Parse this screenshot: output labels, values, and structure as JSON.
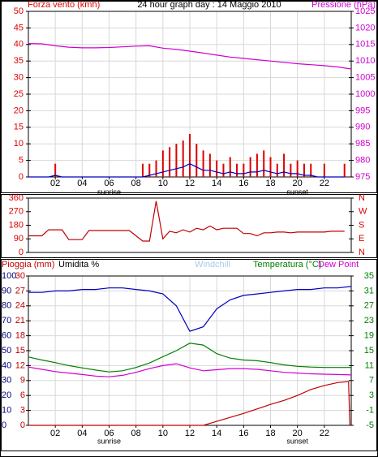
{
  "chart_data": [
    {
      "type": "line",
      "title": "24 hour graph day : 14 Maggio 2010",
      "ylabel": "Forza vento (kmh)",
      "ylabel_color": "#e00000",
      "y2label": "Pressione (hPa)",
      "y2label_color": "#d000d0",
      "xlim": [
        0,
        24
      ],
      "xticks": [
        {
          "value": 2,
          "label": "02"
        },
        {
          "value": 4,
          "label": "04"
        },
        {
          "value": 6,
          "label": "06"
        },
        {
          "value": 8,
          "label": "08"
        },
        {
          "value": 10,
          "label": "10"
        },
        {
          "value": 12,
          "label": "12"
        },
        {
          "value": 14,
          "label": "14"
        },
        {
          "value": 16,
          "label": "16"
        },
        {
          "value": 18,
          "label": "18"
        },
        {
          "value": 20,
          "label": "20"
        },
        {
          "value": 22,
          "label": "22"
        }
      ],
      "ylim": [
        0,
        50
      ],
      "yticks": [
        0,
        5,
        10,
        15,
        20,
        25,
        30,
        35,
        40,
        45,
        50
      ],
      "ytick_color": "#e00000",
      "y2lim": [
        975,
        1025
      ],
      "y2ticks": [
        975,
        980,
        985,
        990,
        995,
        1000,
        1005,
        1010,
        1015,
        1020,
        1025
      ],
      "y2tick_color": "#d000d0",
      "grid": true,
      "annotations": [
        {
          "text": "sunrise",
          "x": 6
        },
        {
          "text": "sunset",
          "x": 20
        }
      ],
      "series": [
        {
          "type": "bar",
          "color": "#e00000",
          "x": [
            0,
            0.5,
            1,
            1.5,
            2,
            2.5,
            3,
            3.5,
            4,
            4.5,
            5,
            5.5,
            6,
            6.5,
            7,
            7.5,
            8,
            8.5,
            9,
            9.5,
            10,
            10.5,
            11,
            11.5,
            12,
            12.5,
            13,
            13.5,
            14,
            14.5,
            15,
            15.5,
            16,
            16.5,
            17,
            17.5,
            18,
            18.5,
            19,
            19.5,
            20,
            20.5,
            21,
            21.5,
            22,
            22.5,
            23,
            23.5
          ],
          "values": [
            0,
            0,
            0,
            0,
            4,
            0,
            0,
            0,
            0,
            0,
            0,
            0,
            0,
            0,
            0,
            0,
            0,
            4,
            4,
            5,
            8,
            9,
            10,
            11,
            13,
            10,
            8,
            7,
            5,
            4,
            6,
            4,
            4,
            6,
            7,
            8,
            6,
            4,
            7,
            4,
            5,
            4,
            4,
            0,
            4,
            0,
            0,
            4
          ]
        },
        {
          "type": "line",
          "color": "#0000c0",
          "x": [
            0,
            0.5,
            1,
            1.5,
            2,
            2.5,
            3,
            3.5,
            4,
            4.5,
            5,
            5.5,
            6,
            6.5,
            7,
            7.5,
            8,
            8.5,
            9,
            9.5,
            10,
            10.5,
            11,
            11.5,
            12,
            12.5,
            13,
            13.5,
            14,
            14.5,
            15,
            15.5,
            16,
            16.5,
            17,
            17.5,
            18,
            18.5,
            19,
            19.5,
            20,
            20.5,
            21,
            21.5,
            22,
            22.5,
            23,
            23.5
          ],
          "values": [
            0,
            0,
            0,
            0,
            0.5,
            0,
            0,
            0,
            0,
            0,
            0,
            0,
            0,
            0,
            0,
            0,
            0,
            0,
            0.5,
            1,
            1.5,
            2,
            2.5,
            3,
            4,
            3,
            2,
            2,
            1.5,
            1,
            1.5,
            1,
            1,
            1.5,
            1.5,
            2,
            1.5,
            1,
            1.5,
            1,
            1,
            0.5,
            0.5,
            0,
            0,
            0,
            0,
            0
          ]
        },
        {
          "type": "line",
          "color": "#d000d0",
          "axis": "y2",
          "x": [
            0,
            1,
            2,
            3,
            4,
            5,
            6,
            7,
            8,
            9,
            10,
            11,
            12,
            13,
            14,
            15,
            16,
            17,
            18,
            19,
            20,
            21,
            22,
            23,
            24
          ],
          "values": [
            1015.3,
            1015.2,
            1014.6,
            1014.2,
            1014.0,
            1014.0,
            1014.1,
            1014.3,
            1014.5,
            1014.6,
            1013.9,
            1013.5,
            1013.0,
            1012.4,
            1011.8,
            1011.2,
            1010.8,
            1010.4,
            1010.0,
            1009.6,
            1009.2,
            1008.9,
            1008.6,
            1008.2,
            1007.6
          ]
        }
      ]
    },
    {
      "type": "line",
      "xlim": [
        0,
        24
      ],
      "ylim": [
        0,
        360
      ],
      "yticks": [
        0,
        90,
        180,
        270,
        360
      ],
      "ytick_color": "#e00000",
      "y2lim": [
        0,
        360
      ],
      "y2ticks": [
        {
          "value": 0,
          "label": "N"
        },
        {
          "value": 90,
          "label": "E"
        },
        {
          "value": 180,
          "label": "S"
        },
        {
          "value": 270,
          "label": "W"
        },
        {
          "value": 360,
          "label": "N"
        }
      ],
      "y2tick_color": "#e00000",
      "grid": false,
      "series": [
        {
          "type": "line",
          "color": "#c00000",
          "x": [
            0,
            0.5,
            1,
            1.5,
            2,
            2.5,
            3,
            3.5,
            4,
            4.5,
            5,
            5.5,
            6,
            6.5,
            7,
            7.5,
            8,
            8.5,
            9,
            9.5,
            10,
            10.5,
            11,
            11.5,
            12,
            12.5,
            13,
            13.5,
            14,
            14.5,
            15,
            15.5,
            16,
            16.5,
            17,
            17.5,
            18,
            18.5,
            19,
            19.5,
            20,
            20.5,
            21,
            21.5,
            22,
            22.5,
            23,
            23.5
          ],
          "values": [
            110,
            110,
            110,
            150,
            150,
            150,
            85,
            85,
            85,
            145,
            145,
            145,
            145,
            145,
            145,
            145,
            110,
            75,
            75,
            340,
            90,
            140,
            130,
            150,
            135,
            160,
            150,
            175,
            150,
            160,
            160,
            160,
            125,
            125,
            110,
            130,
            130,
            135,
            135,
            130,
            135,
            135,
            135,
            135,
            135,
            140,
            140,
            140
          ]
        }
      ]
    },
    {
      "type": "line",
      "xlim": [
        0,
        24
      ],
      "xticks": [
        {
          "value": 2,
          "label": "02"
        },
        {
          "value": 4,
          "label": "04"
        },
        {
          "value": 6,
          "label": "06"
        },
        {
          "value": 8,
          "label": "08"
        },
        {
          "value": 10,
          "label": "10"
        },
        {
          "value": 12,
          "label": "12"
        },
        {
          "value": 14,
          "label": "14"
        },
        {
          "value": 16,
          "label": "16"
        },
        {
          "value": 18,
          "label": "18"
        },
        {
          "value": 20,
          "label": "20"
        },
        {
          "value": 22,
          "label": "22"
        }
      ],
      "ylim": [
        0,
        100
      ],
      "yticks": [
        0,
        10,
        20,
        30,
        40,
        50,
        60,
        70,
        80,
        90,
        100
      ],
      "ytick_color": "#000080",
      "y3lim": [
        0,
        30
      ],
      "y3ticks": [
        0,
        3,
        6,
        9,
        12,
        15,
        18,
        21,
        24,
        27,
        30
      ],
      "y3tick_color": "#c00000",
      "y2lim": [
        -5,
        35
      ],
      "y2ticks": [
        -5,
        -1,
        3,
        7,
        11,
        15,
        19,
        23,
        27,
        31,
        35
      ],
      "y2tick_color": "#008000",
      "grid": true,
      "annotations": [
        {
          "text": "sunrise",
          "x": 6
        },
        {
          "text": "sunset",
          "x": 20
        }
      ],
      "series": [
        {
          "name": "Pioggia (mm)",
          "type": "line",
          "color": "#c00000",
          "axis": "y3",
          "x": [
            0,
            13,
            14,
            15,
            16,
            17,
            18,
            19,
            20,
            21,
            22,
            23,
            23.8,
            23.9
          ],
          "values": [
            0,
            0,
            0.8,
            1.6,
            2.4,
            3.3,
            4.2,
            5.0,
            6.0,
            7.2,
            8.0,
            8.6,
            8.8,
            0
          ]
        },
        {
          "name": "Umidita %",
          "label_color": "#000000",
          "type": "line",
          "color": "#0000c0",
          "x": [
            0,
            1,
            2,
            3,
            4,
            5,
            6,
            7,
            8,
            9,
            10,
            11,
            12,
            13,
            14,
            15,
            16,
            17,
            18,
            19,
            20,
            21,
            22,
            23,
            24
          ],
          "values": [
            89,
            89,
            90,
            90,
            91,
            91,
            92,
            92,
            91,
            90,
            88,
            80,
            63,
            66,
            78,
            84,
            87,
            88,
            89,
            90,
            91,
            91,
            92,
            92,
            93
          ]
        },
        {
          "name": "Windchill",
          "type": "line",
          "color": "#a8cce8",
          "axis": "y2",
          "x": [],
          "values": []
        },
        {
          "name": "Temperatura (°C)",
          "type": "line",
          "color": "#008000",
          "axis": "y2",
          "x": [
            0,
            1,
            2,
            3,
            4,
            5,
            6,
            7,
            8,
            9,
            10,
            11,
            12,
            13,
            14,
            15,
            16,
            17,
            18,
            19,
            20,
            21,
            22,
            23,
            24
          ],
          "values": [
            13.3,
            12.5,
            11.8,
            11.0,
            10.4,
            9.8,
            9.3,
            9.6,
            10.5,
            11.7,
            13.4,
            15.0,
            17.0,
            16.5,
            14.2,
            13.0,
            12.5,
            12.3,
            11.8,
            11.2,
            10.8,
            10.6,
            10.5,
            10.5,
            10.5
          ]
        },
        {
          "name": "Dew Point",
          "type": "line",
          "color": "#d000d0",
          "axis": "y2",
          "x": [
            0,
            1,
            2,
            3,
            4,
            5,
            6,
            7,
            8,
            9,
            10,
            11,
            12,
            13,
            14,
            15,
            16,
            17,
            18,
            19,
            20,
            21,
            22,
            23,
            24
          ],
          "values": [
            10.6,
            10.0,
            9.4,
            9.0,
            8.6,
            8.2,
            8.0,
            8.4,
            9.2,
            10.2,
            11.0,
            11.5,
            10.4,
            9.6,
            9.9,
            10.2,
            10.2,
            10.0,
            9.6,
            9.2,
            9.0,
            8.8,
            8.7,
            8.6,
            8.5
          ]
        }
      ]
    }
  ]
}
